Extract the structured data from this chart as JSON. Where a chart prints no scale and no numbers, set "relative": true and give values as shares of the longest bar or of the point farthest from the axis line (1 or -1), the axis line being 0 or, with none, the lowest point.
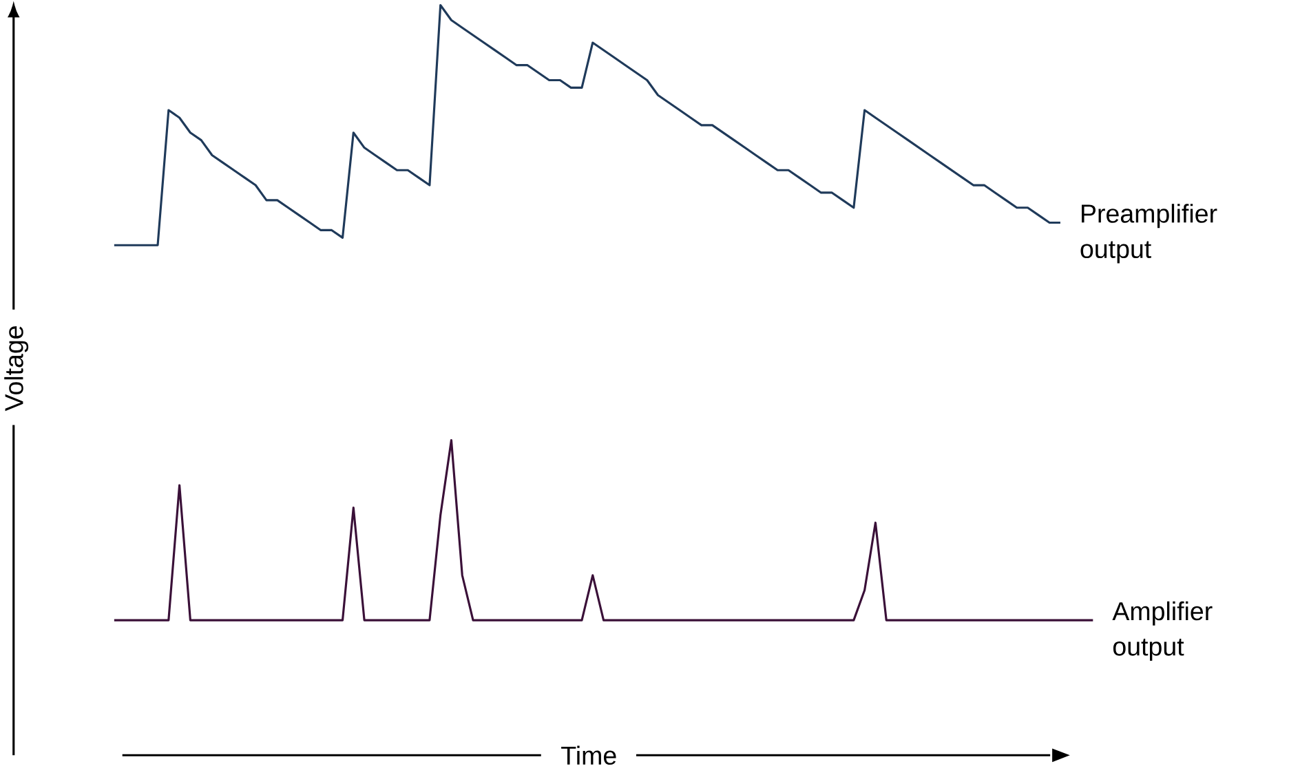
{
  "chart_data": {
    "type": "line",
    "relative": true,
    "xlabel": "Time",
    "ylabel": "Voltage",
    "categories": [
      null,
      null,
      null,
      null,
      null,
      null,
      null,
      null,
      null,
      null,
      null,
      null,
      null,
      null,
      null,
      null,
      null,
      null,
      null,
      null,
      null,
      null,
      null,
      null,
      null,
      null,
      null,
      null,
      null,
      null,
      null,
      null,
      null,
      null,
      null,
      null,
      null,
      null,
      null,
      null,
      null,
      null,
      null,
      null,
      null,
      null,
      null,
      null,
      null,
      null,
      null,
      null,
      null,
      null,
      null,
      null,
      null,
      null,
      null,
      null,
      null,
      null,
      null,
      null,
      null,
      null,
      null,
      null,
      null,
      null,
      null,
      null,
      null,
      null,
      null,
      null,
      null,
      null,
      null,
      null,
      null,
      null,
      null,
      null,
      null,
      null,
      null,
      null,
      null,
      null,
      null
    ],
    "series": [
      {
        "name": "Preamplifier output",
        "color": "#1f3a5a",
        "values": [
          0.68,
          0.68,
          0.68,
          0.68,
          0.68,
          0.86,
          0.85,
          0.83,
          0.82,
          0.8,
          0.79,
          0.78,
          0.77,
          0.76,
          0.74,
          0.74,
          0.73,
          0.72,
          0.71,
          0.7,
          0.7,
          0.69,
          0.83,
          0.81,
          0.8,
          0.79,
          0.78,
          0.78,
          0.77,
          0.76,
          1,
          0.98,
          0.97,
          0.96,
          0.95,
          0.94,
          0.93,
          0.92,
          0.92,
          0.91,
          0.9,
          0.9,
          0.89,
          0.89,
          0.95,
          0.94,
          0.93,
          0.92,
          0.91,
          0.9,
          0.88,
          0.87,
          0.86,
          0.85,
          0.84,
          0.84,
          0.83,
          0.82,
          0.81,
          0.8,
          0.79,
          0.78,
          0.78,
          0.77,
          0.76,
          0.75,
          0.75,
          0.74,
          0.73,
          0.86,
          0.85,
          0.84,
          0.83,
          0.82,
          0.81,
          0.8,
          0.79,
          0.78,
          0.77,
          0.76,
          0.76,
          0.75,
          0.74,
          0.73,
          0.73,
          0.72,
          0.71,
          0.71,
          null,
          null,
          null
        ]
      },
      {
        "name": "Amplifier output",
        "color": "#3a1038",
        "values": [
          0.18,
          0.18,
          0.18,
          0.18,
          0.18,
          0.18,
          0.36,
          0.18,
          0.18,
          0.18,
          0.18,
          0.18,
          0.18,
          0.18,
          0.18,
          0.18,
          0.18,
          0.18,
          0.18,
          0.18,
          0.18,
          0.18,
          0.33,
          0.18,
          0.18,
          0.18,
          0.18,
          0.18,
          0.18,
          0.18,
          0.32,
          0.42,
          0.24,
          0.18,
          0.18,
          0.18,
          0.18,
          0.18,
          0.18,
          0.18,
          0.18,
          0.18,
          0.18,
          0.18,
          0.24,
          0.18,
          0.18,
          0.18,
          0.18,
          0.18,
          0.18,
          0.18,
          0.18,
          0.18,
          0.18,
          0.18,
          0.18,
          0.18,
          0.18,
          0.18,
          0.18,
          0.18,
          0.18,
          0.18,
          0.18,
          0.18,
          0.18,
          0.18,
          0.18,
          0.22,
          0.31,
          0.18,
          0.18,
          0.18,
          0.18,
          0.18,
          0.18,
          0.18,
          0.18,
          0.18,
          0.18,
          0.18,
          0.18,
          0.18,
          0.18,
          0.18,
          0.18,
          0.18,
          0.18,
          0.18,
          0.18
        ]
      }
    ]
  }
}
